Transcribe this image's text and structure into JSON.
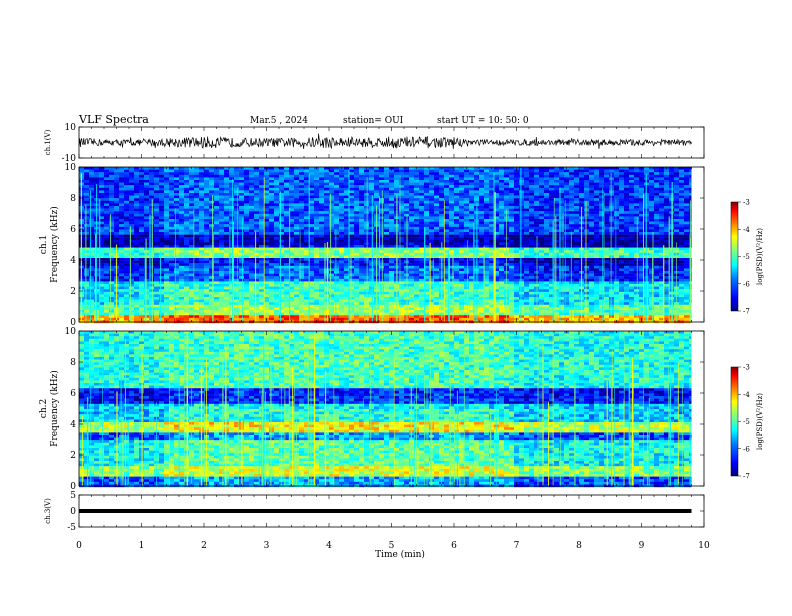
{
  "header": {
    "title": "VLF Spectra",
    "date": "Mar.5 , 2024",
    "station": "station= OUI",
    "start": "start UT = 10: 50: 0"
  },
  "colors": {
    "cmap": [
      "#00007f",
      "#0000ff",
      "#007fff",
      "#00ffff",
      "#7fff7f",
      "#ffff00",
      "#ff7f00",
      "#ff0000",
      "#7f0000"
    ]
  },
  "chart_data": [
    {
      "type": "line",
      "name": "ch1-waveform",
      "ylabel": "ch.1(V)",
      "ylim": [
        -10,
        10
      ],
      "yticks": [
        "10",
        "-10"
      ],
      "x": [
        0,
        0.5,
        1,
        1.5,
        2,
        2.5,
        3,
        3.5,
        4,
        4.5,
        5,
        5.5,
        6,
        6.5,
        7,
        7.5,
        8,
        8.5,
        9,
        9.5,
        9.8
      ],
      "amplitude": [
        3,
        2,
        2,
        3,
        4,
        3,
        3,
        3,
        4,
        3,
        4,
        4,
        3,
        2,
        2,
        2,
        2,
        2,
        2,
        2,
        2
      ]
    },
    {
      "type": "heatmap",
      "name": "ch1-spectrogram",
      "ylabel": "ch.1\nFrequency (kHz)",
      "ylim": [
        0,
        10
      ],
      "xlim": [
        0,
        10
      ],
      "yticks": [
        "0",
        "2",
        "4",
        "6",
        "8",
        "10"
      ],
      "colorbar": {
        "label": "log(PSD)(V²/Hz)",
        "ticks": [
          "-3",
          "-4",
          "-5",
          "-6",
          "-7"
        ],
        "range": [
          -7,
          -3
        ]
      },
      "bands": [
        {
          "f": [
            0,
            0.5
          ],
          "level": -4.2
        },
        {
          "f": [
            0.5,
            1.2
          ],
          "level": -5.2
        },
        {
          "f": [
            1.2,
            2.6
          ],
          "level": -5.6
        },
        {
          "f": [
            2.6,
            3.7
          ],
          "level": -6.4
        },
        {
          "f": [
            3.7,
            4.2
          ],
          "level": -6.8
        },
        {
          "f": [
            4.2,
            4.8
          ],
          "level": -5.3
        },
        {
          "f": [
            4.8,
            5.6
          ],
          "level": -6.9
        },
        {
          "f": [
            5.6,
            10
          ],
          "level": -6.3
        }
      ]
    },
    {
      "type": "heatmap",
      "name": "ch2-spectrogram",
      "ylabel": "ch.2\nFrequency (kHz)",
      "ylim": [
        0,
        10
      ],
      "xlim": [
        0,
        10
      ],
      "yticks": [
        "0",
        "2",
        "4",
        "6",
        "8",
        "10"
      ],
      "colorbar": {
        "label": "log(PSD)(V²/Hz)",
        "ticks": [
          "-3",
          "-4",
          "-5",
          "-6",
          "-7"
        ],
        "range": [
          -7,
          -3
        ]
      },
      "bands": [
        {
          "f": [
            0,
            0.6
          ],
          "level": -6.2
        },
        {
          "f": [
            0.6,
            1.4
          ],
          "level": -5.0
        },
        {
          "f": [
            1.4,
            3.0
          ],
          "level": -5.5
        },
        {
          "f": [
            3.0,
            3.5
          ],
          "level": -6.2
        },
        {
          "f": [
            3.5,
            4.2
          ],
          "level": -4.8
        },
        {
          "f": [
            4.2,
            5.3
          ],
          "level": -5.7
        },
        {
          "f": [
            5.3,
            6.4
          ],
          "level": -6.5
        },
        {
          "f": [
            6.4,
            10
          ],
          "level": -5.4
        }
      ]
    },
    {
      "type": "line",
      "name": "ch3-voltage",
      "ylabel": "ch.3(V)",
      "ylim": [
        -5,
        5
      ],
      "yticks": [
        "5",
        "0",
        "-5"
      ],
      "x": [
        0,
        9.8
      ],
      "y": [
        0,
        0
      ]
    }
  ],
  "xaxis": {
    "label": "Time (min)",
    "ticks": [
      "0",
      "1",
      "2",
      "3",
      "4",
      "5",
      "6",
      "7",
      "8",
      "9",
      "10"
    ],
    "range": [
      0,
      10
    ]
  }
}
